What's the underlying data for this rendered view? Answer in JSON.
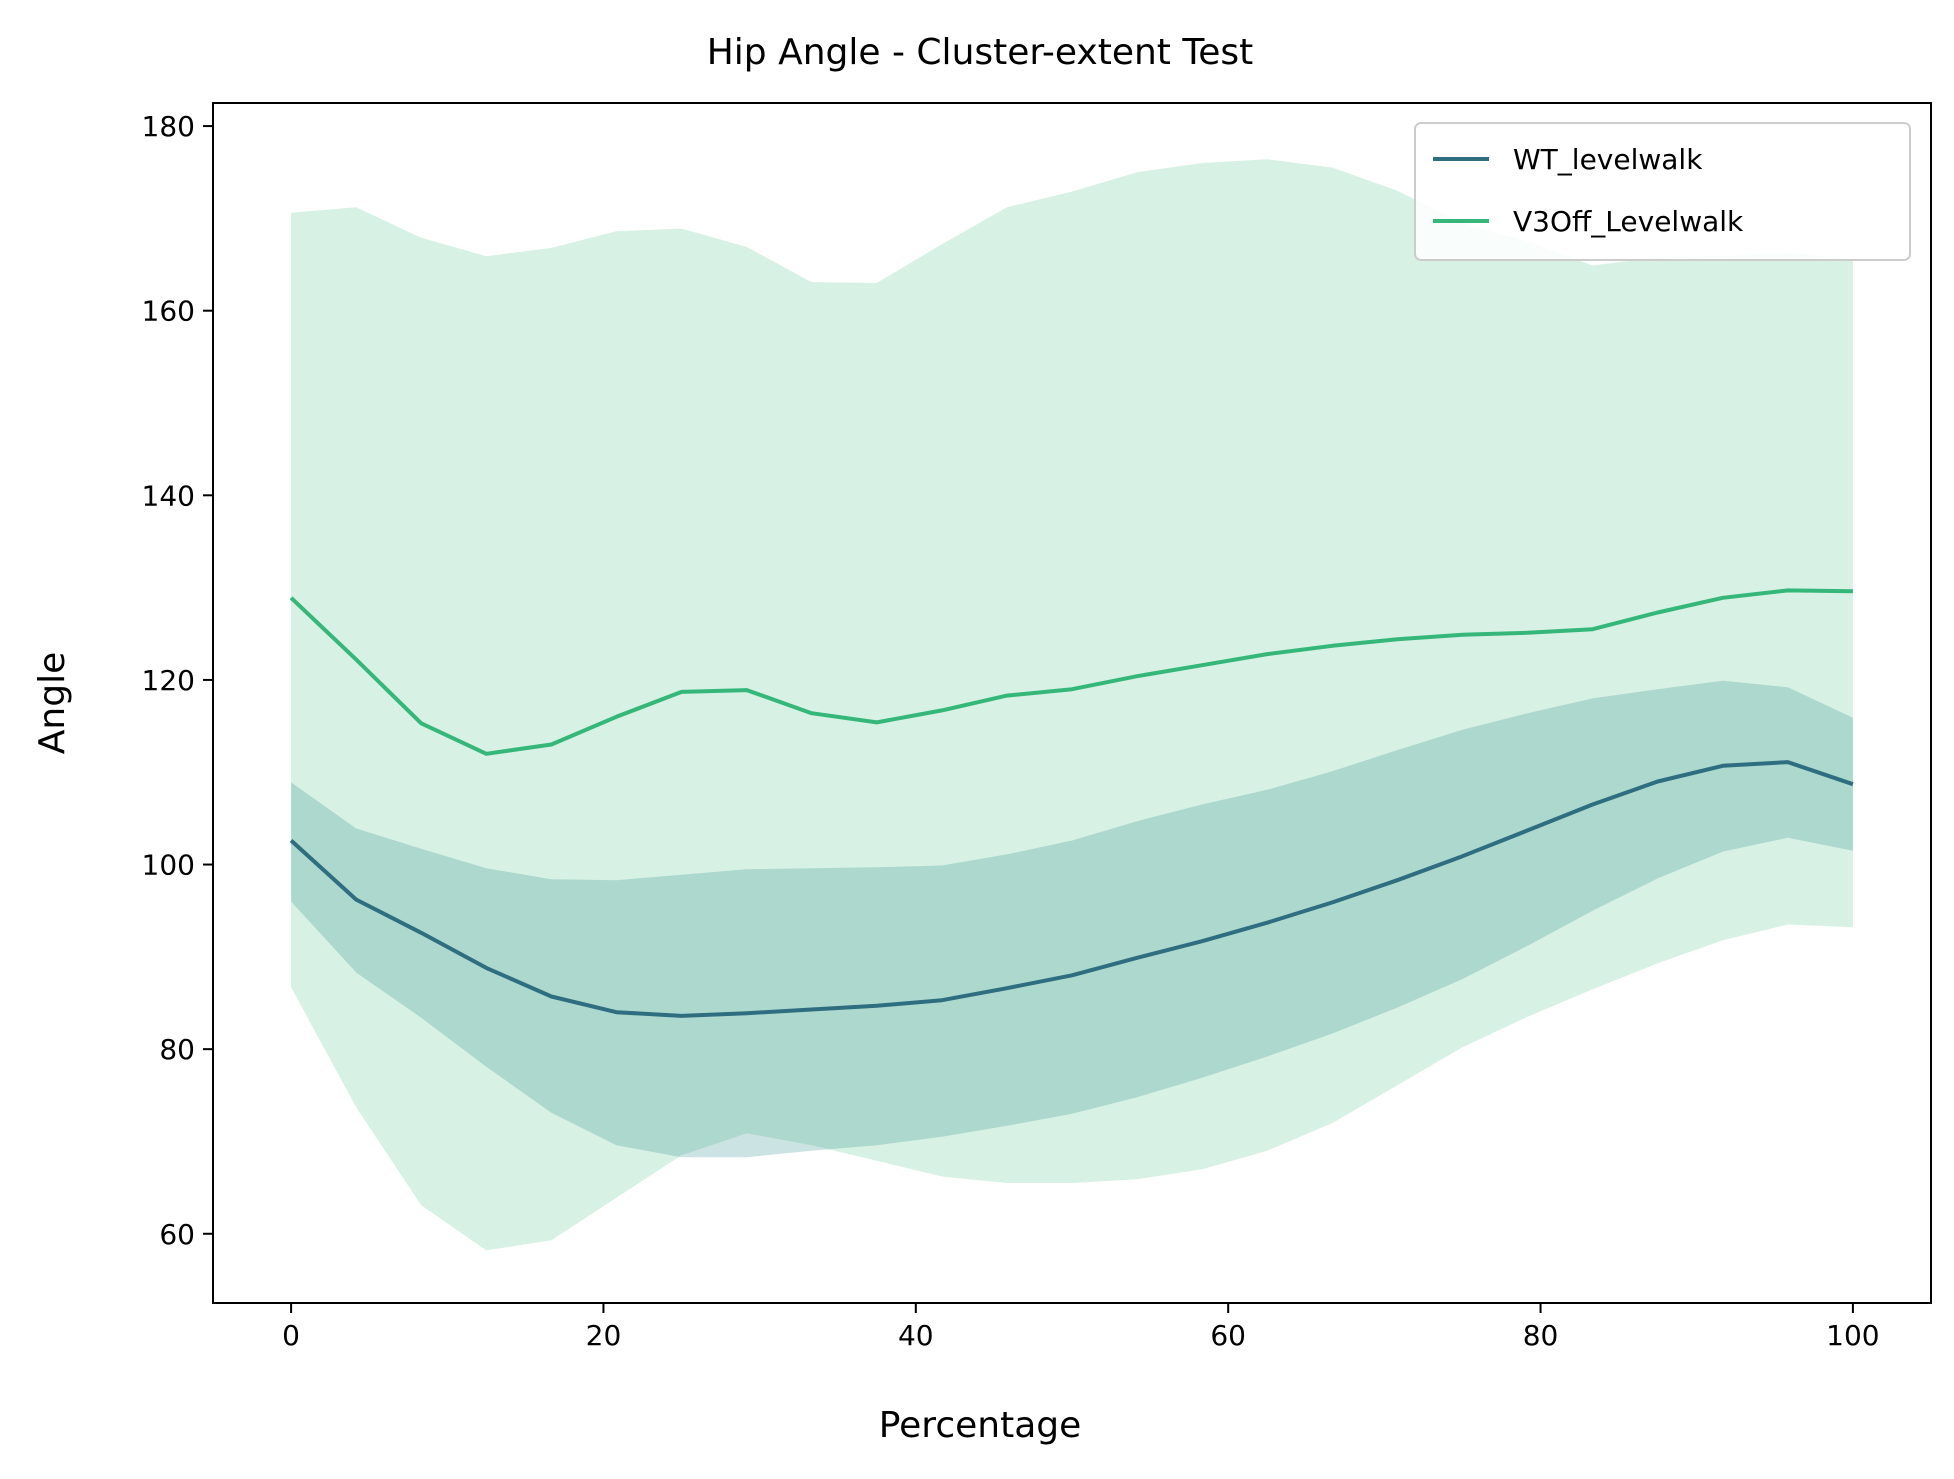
{
  "chart_data": {
    "type": "line",
    "title": "Hip Angle - Cluster-extent Test",
    "xlabel": "Percentage",
    "ylabel": "Angle",
    "xlim": [
      -5,
      105
    ],
    "ylim": [
      52.5,
      182.5
    ],
    "xticks": [
      "0",
      "20",
      "40",
      "60",
      "80",
      "100"
    ],
    "yticks": [
      "60",
      "80",
      "100",
      "120",
      "140",
      "160",
      "180"
    ],
    "grid": false,
    "legend_position": "top-right",
    "x": [
      0,
      4.17,
      8.33,
      12.5,
      16.67,
      20.83,
      25,
      29.17,
      33.33,
      37.5,
      41.67,
      45.83,
      50,
      54.17,
      58.33,
      62.5,
      66.67,
      70.83,
      75,
      79.17,
      83.33,
      87.5,
      91.67,
      95.83,
      100
    ],
    "series": [
      {
        "name": "WT_levelwalk",
        "color": "#2e6e80",
        "band_color": "#2e8e8a",
        "values": [
          102.6,
          96.2,
          92.6,
          88.8,
          85.7,
          84.0,
          83.6,
          83.9,
          84.3,
          84.7,
          85.3,
          86.6,
          88.0,
          89.9,
          91.7,
          93.7,
          95.9,
          98.3,
          100.9,
          103.7,
          106.5,
          109.0,
          110.7,
          111.1,
          108.7
        ],
        "lower": [
          96.0,
          88.3,
          83.4,
          78.1,
          73.1,
          69.6,
          68.3,
          68.3,
          69.0,
          69.6,
          70.5,
          71.7,
          73.0,
          74.8,
          76.9,
          79.2,
          81.7,
          84.5,
          87.6,
          91.2,
          95.0,
          98.5,
          101.4,
          102.9,
          101.5
        ],
        "upper": [
          108.9,
          103.9,
          101.7,
          99.6,
          98.4,
          98.3,
          98.9,
          99.5,
          99.6,
          99.7,
          99.9,
          101.1,
          102.6,
          104.7,
          106.5,
          108.1,
          110.1,
          112.4,
          114.6,
          116.4,
          118.0,
          119.0,
          119.9,
          119.2,
          115.9
        ]
      },
      {
        "name": "V3Off_Levelwalk",
        "color": "#35b779",
        "band_color": "#35b779",
        "values": [
          128.9,
          122.2,
          115.3,
          112.0,
          113.0,
          116.0,
          118.7,
          118.9,
          116.4,
          115.4,
          116.7,
          118.3,
          119.0,
          120.4,
          121.6,
          122.8,
          123.7,
          124.4,
          124.9,
          125.1,
          125.5,
          127.3,
          128.9,
          129.7,
          129.6
        ],
        "lower": [
          86.7,
          73.7,
          63.1,
          58.2,
          59.3,
          63.9,
          68.5,
          70.9,
          69.6,
          67.9,
          66.2,
          65.5,
          65.5,
          65.9,
          67.0,
          69.0,
          72.0,
          76.1,
          80.2,
          83.5,
          86.5,
          89.3,
          91.8,
          93.5,
          93.2
        ],
        "upper": [
          170.6,
          171.2,
          167.9,
          165.9,
          166.8,
          168.6,
          168.9,
          166.9,
          163.1,
          163.0,
          167.2,
          171.2,
          172.9,
          175.0,
          176.0,
          176.4,
          175.5,
          173.0,
          169.5,
          167.5,
          164.9,
          165.8,
          165.9,
          166.3,
          165.5
        ]
      }
    ]
  }
}
